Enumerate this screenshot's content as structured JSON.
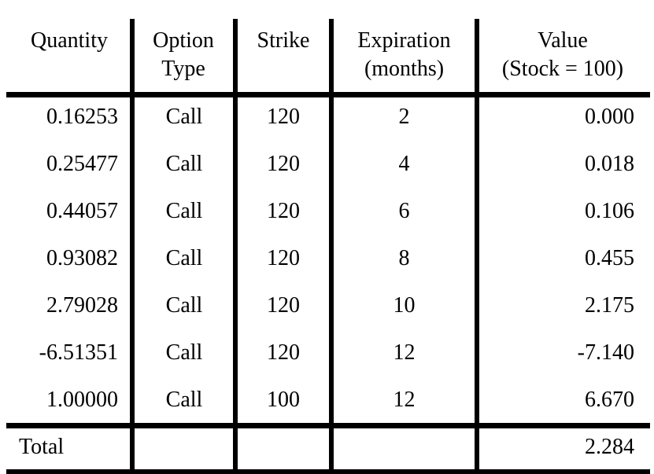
{
  "headers": {
    "quantity": "Quantity",
    "option_type_line1": "Option",
    "option_type_line2": "Type",
    "strike": "Strike",
    "expiration_line1": "Expiration",
    "expiration_line2": "(months)",
    "value_line1": "Value",
    "value_line2": "(Stock = 100)"
  },
  "rows": [
    {
      "quantity": "0.16253",
      "type": "Call",
      "strike": "120",
      "expiration": "2",
      "value": "0.000"
    },
    {
      "quantity": "0.25477",
      "type": "Call",
      "strike": "120",
      "expiration": "4",
      "value": "0.018"
    },
    {
      "quantity": "0.44057",
      "type": "Call",
      "strike": "120",
      "expiration": "6",
      "value": "0.106"
    },
    {
      "quantity": "0.93082",
      "type": "Call",
      "strike": "120",
      "expiration": "8",
      "value": "0.455"
    },
    {
      "quantity": "2.79028",
      "type": "Call",
      "strike": "120",
      "expiration": "10",
      "value": "2.175"
    },
    {
      "quantity": "-6.51351",
      "type": "Call",
      "strike": "120",
      "expiration": "12",
      "value": "-7.140"
    },
    {
      "quantity": "1.00000",
      "type": "Call",
      "strike": "100",
      "expiration": "12",
      "value": "6.670"
    }
  ],
  "total": {
    "label": "Total",
    "value": "2.284"
  }
}
